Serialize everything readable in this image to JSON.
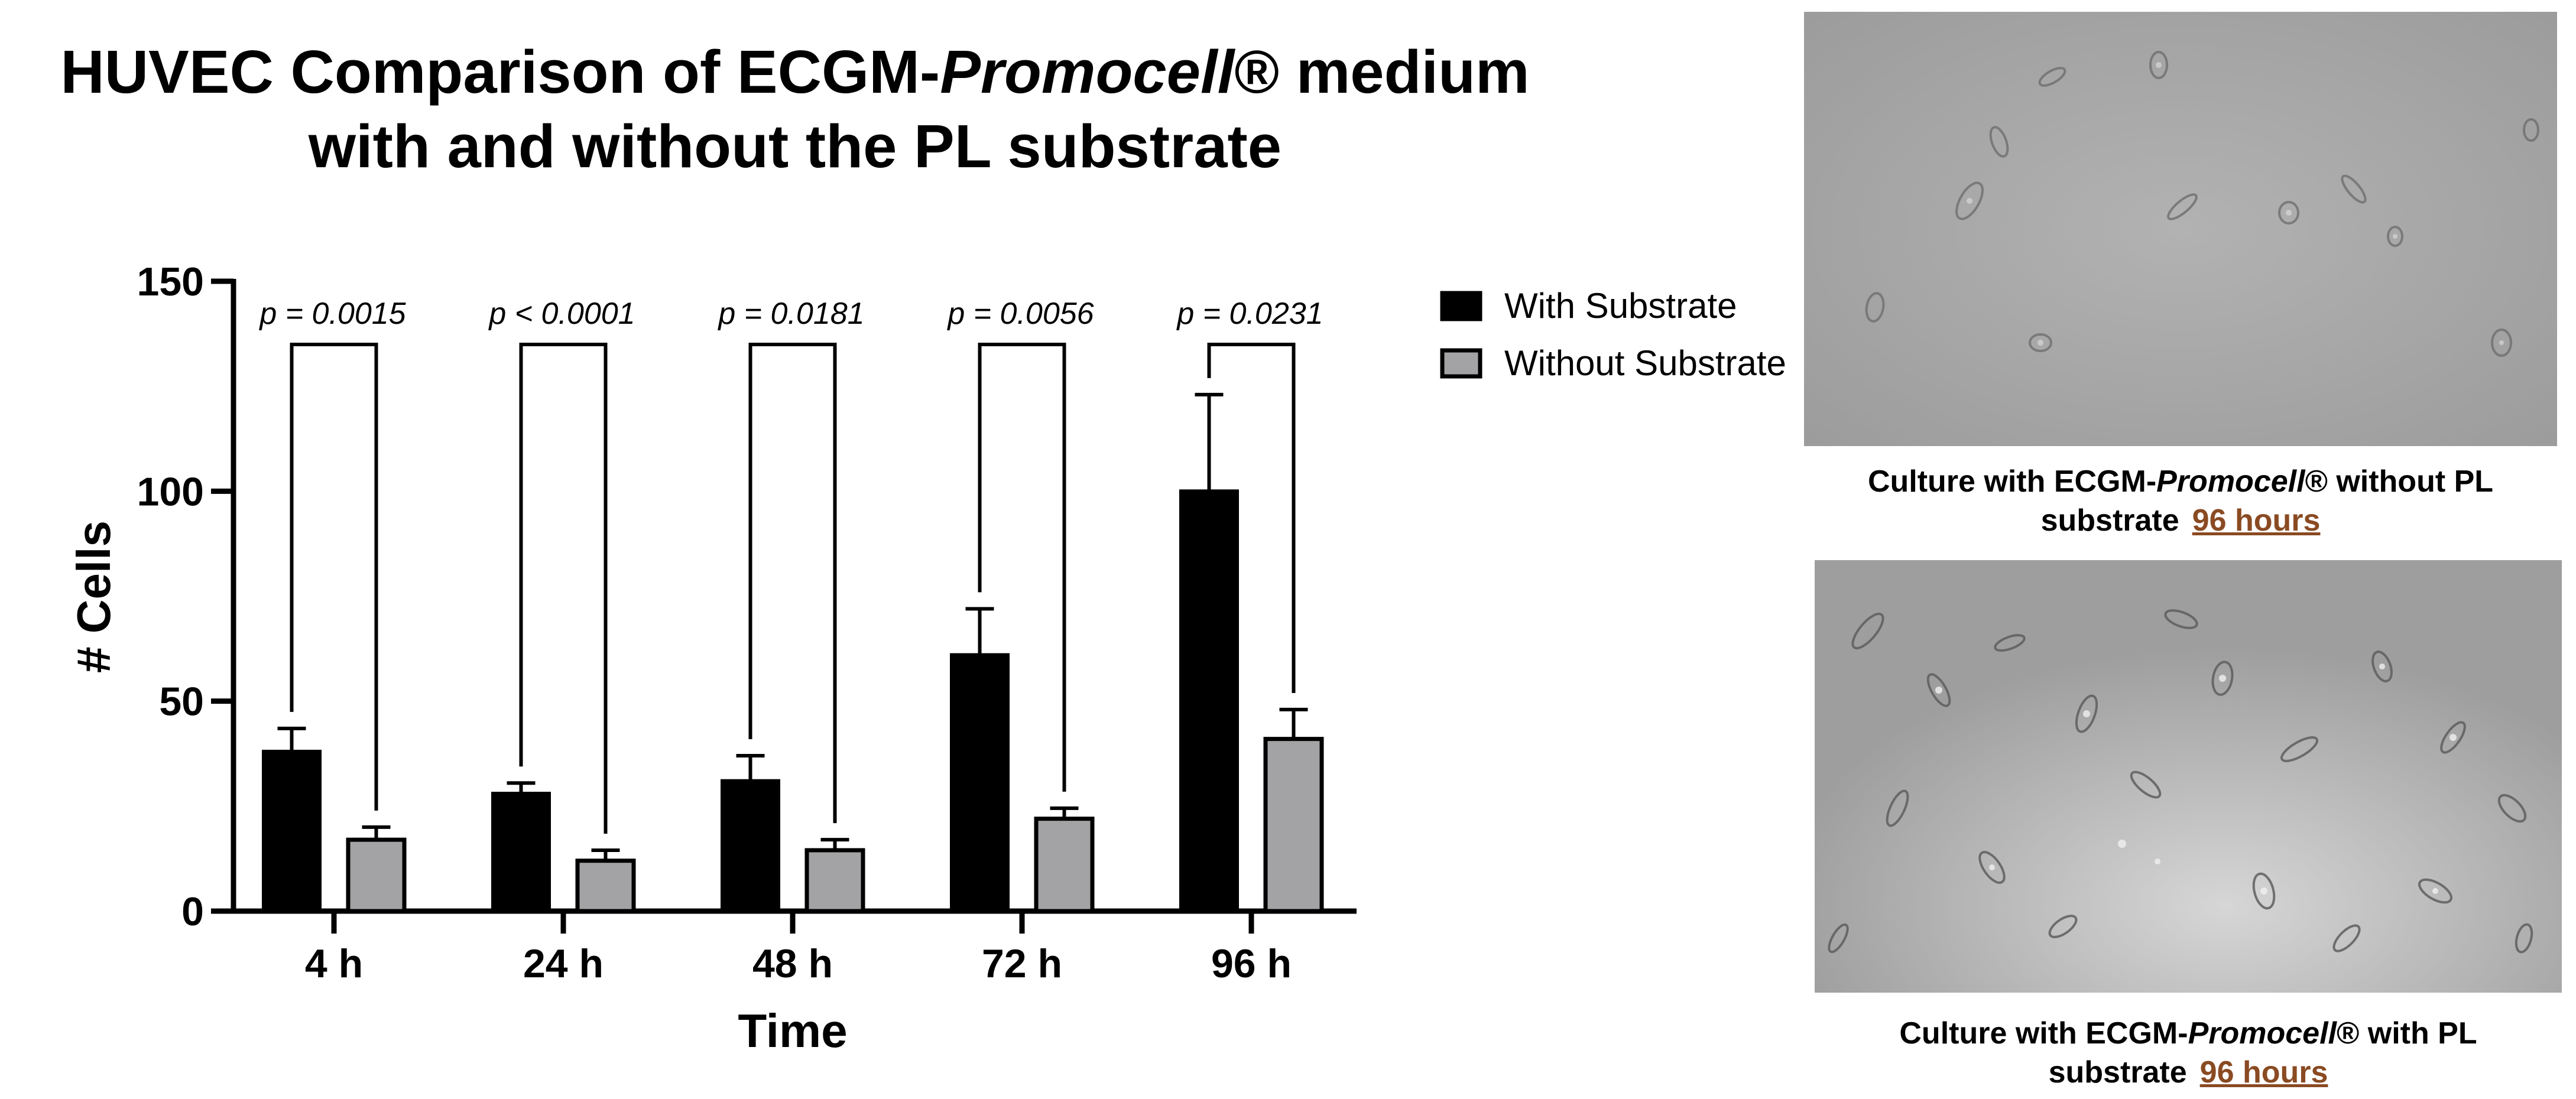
{
  "title": {
    "line1_prefix": "HUVEC Comparison of ECGM-",
    "line1_italic": "Promocell",
    "line1_suffix": "® medium",
    "line2": "with and without the PL substrate"
  },
  "chart_data": {
    "type": "bar",
    "categories": [
      "4 h",
      "24 h",
      "48 h",
      "72 h",
      "96 h"
    ],
    "series": [
      {
        "name": "With Substrate",
        "color": "#000000",
        "values": [
          38,
          28,
          31,
          61,
          100
        ],
        "errors": [
          5.5,
          2.5,
          6,
          11,
          23
        ]
      },
      {
        "name": "Without Substrate",
        "color": "#a3a3a6",
        "values": [
          17,
          12,
          14.5,
          22,
          41
        ],
        "errors": [
          3,
          2.5,
          2.5,
          2.5,
          7
        ]
      }
    ],
    "p_values": [
      "p = 0.0015",
      "p < 0.0001",
      "p = 0.0181",
      "p = 0.0056",
      "p = 0.0231"
    ],
    "xlabel": "Time",
    "ylabel": "# Cells",
    "ylim": [
      0,
      150
    ],
    "yticks": [
      0,
      50,
      100,
      150
    ],
    "grid": false,
    "legend_position": "top-right"
  },
  "images": {
    "top": {
      "caption_line1_prefix": "Culture with ECGM-",
      "caption_line1_italic": "Promocell",
      "caption_line1_suffix": "® without PL",
      "caption_line2": "substrate",
      "caption_time": "96 hours"
    },
    "bottom": {
      "caption_line1_prefix": "Culture with ECGM-",
      "caption_line1_italic": "Promocell",
      "caption_line1_suffix": "® with PL",
      "caption_line2": "substrate",
      "caption_time": "96 hours"
    }
  }
}
